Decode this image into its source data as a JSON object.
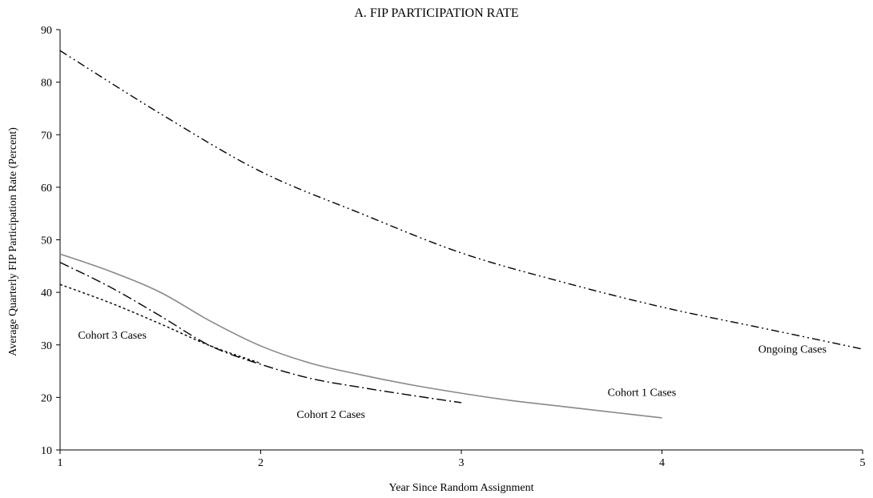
{
  "chart_data": {
    "type": "line",
    "title": "A.  FIP PARTICIPATION RATE",
    "xlabel": "Year Since Random Assignment",
    "ylabel": "Average Quarterly FIP Participation Rate (Percent)",
    "xlim": [
      1,
      5
    ],
    "ylim": [
      10,
      90
    ],
    "xticks": [
      1,
      2,
      3,
      4,
      5
    ],
    "yticks": [
      10,
      20,
      30,
      40,
      50,
      60,
      70,
      80,
      90
    ],
    "grid": false,
    "legend": "none",
    "series": [
      {
        "name": "Ongoing Cases",
        "style": "dash-dot-dot",
        "color": "#000000",
        "x": [
          1,
          1.5,
          2,
          2.5,
          3,
          3.5,
          4,
          4.5,
          5
        ],
        "y": [
          86,
          74,
          63,
          55,
          47.5,
          42,
          37.2,
          33.2,
          29.2
        ]
      },
      {
        "name": "Cohort 1 Cases",
        "style": "solid",
        "color": "#888888",
        "x": [
          1,
          1.25,
          1.5,
          1.75,
          2,
          2.25,
          2.5,
          2.75,
          3,
          3.25,
          3.5,
          3.75,
          4
        ],
        "y": [
          47.3,
          44,
          40,
          34.5,
          29.8,
          26.5,
          24.3,
          22.4,
          20.8,
          19.4,
          18.3,
          17.2,
          16.1
        ]
      },
      {
        "name": "Cohort 2 Cases",
        "style": "dash-dot",
        "color": "#000000",
        "x": [
          1,
          1.25,
          1.5,
          1.75,
          2,
          2.25,
          2.5,
          2.75,
          3
        ],
        "y": [
          45.7,
          41,
          35.5,
          29.8,
          26.3,
          23.6,
          21.9,
          20.4,
          19
        ]
      },
      {
        "name": "Cohort 3 Cases",
        "style": "dotted",
        "color": "#000000",
        "x": [
          1,
          1.25,
          1.5,
          1.75,
          2
        ],
        "y": [
          41.5,
          38,
          34,
          29.8,
          26.5
        ]
      }
    ],
    "annotations": [
      {
        "text": "Ongoing Cases",
        "x": 4.65,
        "y": 28.5
      },
      {
        "text": "Cohort 1 Cases",
        "x": 3.9,
        "y": 20.3
      },
      {
        "text": "Cohort 2 Cases",
        "x": 2.35,
        "y": 16.1
      },
      {
        "text": "Cohort 3 Cases",
        "x": 1.26,
        "y": 31.2
      }
    ]
  }
}
